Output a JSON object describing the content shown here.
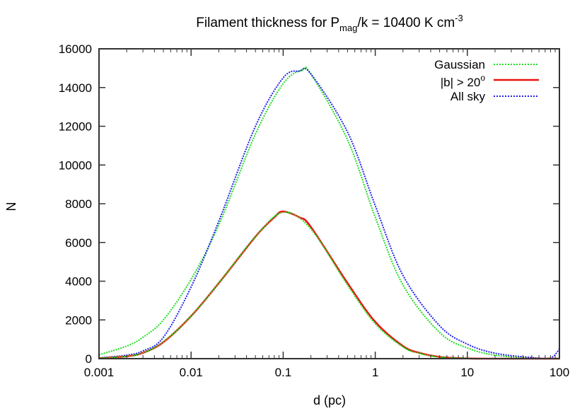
{
  "chart_data": {
    "type": "line",
    "title": {
      "prefix": "Filament thickness for P",
      "sub": "mag",
      "middle": "/k = 10400 K cm",
      "sup": "-3"
    },
    "xlabel": "d (pc)",
    "ylabel": "N",
    "xscale": "log",
    "xlim": [
      0.001,
      100
    ],
    "ylim": [
      0,
      16000
    ],
    "x_ticks": [
      "0.001",
      "0.01",
      "0.1",
      "1",
      "10",
      "100"
    ],
    "y_ticks": [
      "0",
      "2000",
      "4000",
      "6000",
      "8000",
      "10000",
      "12000",
      "14000",
      "16000"
    ],
    "grid": false,
    "legend_position": "top-right",
    "legend": [
      {
        "label": "Gaussian",
        "color": "#22dd22",
        "style": "dotted"
      },
      {
        "label_main": "|b| > 20",
        "label_sup": "o",
        "color": "#ee1111",
        "style": "solid"
      },
      {
        "label": "All sky",
        "color": "#2222ee",
        "style": "dotted"
      }
    ],
    "series": [
      {
        "color": "#22dd22",
        "style": "dotted",
        "x": [
          0.001,
          0.002,
          0.003,
          0.005,
          0.01,
          0.02,
          0.05,
          0.1,
          0.16,
          0.2,
          0.5,
          1,
          2,
          5,
          10,
          20,
          50,
          100
        ],
        "y": [
          200,
          650,
          1100,
          2000,
          4100,
          6900,
          11600,
          14200,
          14900,
          14700,
          11300,
          7300,
          3800,
          1350,
          550,
          180,
          30,
          5
        ]
      },
      {
        "color": "#2222ee",
        "style": "dotted",
        "x": [
          0.001,
          0.002,
          0.003,
          0.005,
          0.01,
          0.02,
          0.05,
          0.1,
          0.15,
          0.2,
          0.5,
          1,
          2,
          5,
          10,
          20,
          50,
          80,
          100
        ],
        "y": [
          40,
          180,
          400,
          1100,
          3700,
          7100,
          12000,
          14500,
          14850,
          14700,
          11700,
          7900,
          4300,
          1700,
          750,
          280,
          60,
          40,
          500
        ]
      },
      {
        "color": "#ee1111",
        "style": "solid",
        "x": [
          0.001,
          0.002,
          0.003,
          0.005,
          0.01,
          0.02,
          0.05,
          0.08,
          0.1,
          0.15,
          0.2,
          0.5,
          1,
          2,
          3,
          5,
          10,
          20,
          100
        ],
        "y": [
          20,
          120,
          300,
          850,
          2200,
          3900,
          6300,
          7300,
          7600,
          7300,
          6800,
          3900,
          1900,
          650,
          300,
          90,
          10,
          0,
          0
        ]
      },
      {
        "color": "#22dd22",
        "style": "dotted",
        "x": [
          0.001,
          0.002,
          0.003,
          0.005,
          0.01,
          0.02,
          0.05,
          0.1,
          0.2,
          0.5,
          1,
          2,
          3,
          5,
          10,
          20,
          100
        ],
        "y": [
          20,
          120,
          300,
          850,
          2200,
          3900,
          6300,
          7550,
          6700,
          3800,
          1800,
          600,
          280,
          80,
          10,
          0,
          0
        ]
      }
    ]
  }
}
